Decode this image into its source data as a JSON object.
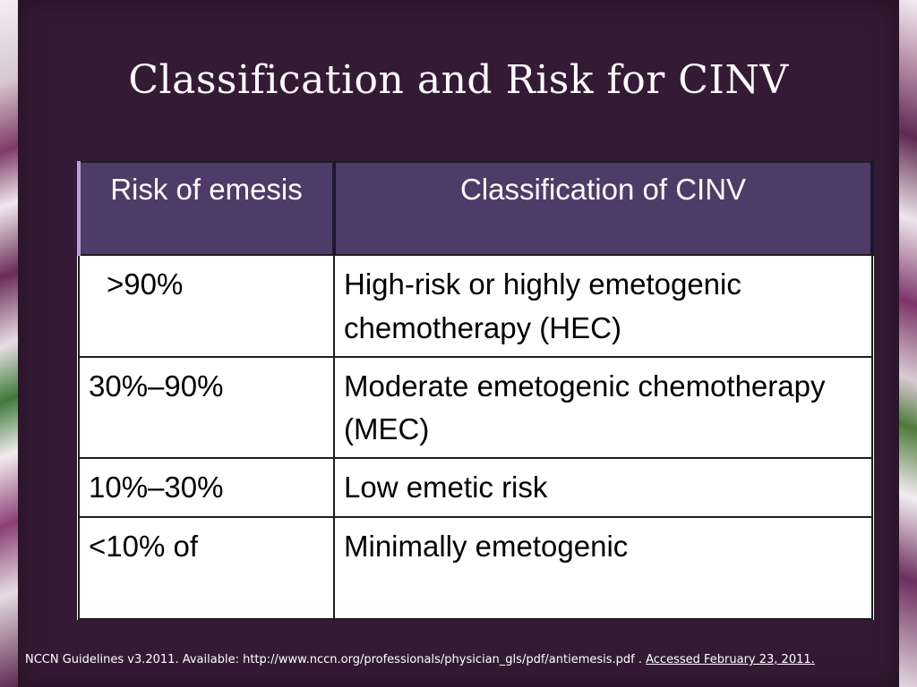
{
  "slide": {
    "title": "Classification and Risk for CINV",
    "table": {
      "headers": [
        "Risk of emesis",
        "Classification of CINV"
      ],
      "rows": [
        {
          "risk": ">90%",
          "classification": "High-risk or highly emetogenic chemotherapy (HEC)"
        },
        {
          "risk": "30%–90%",
          "classification": "Moderate emetogenic chemotherapy (MEC)"
        },
        {
          "risk": "10%–30%",
          "classification": "Low emetic risk"
        },
        {
          "risk": "<10% of",
          "classification": "Minimally emetogenic"
        }
      ]
    },
    "footer": {
      "citation": "NCCN Guidelines v3.2011. Available: http://www.nccn.org/professionals/physician_gls/pdf/antiemesis.pdf . ",
      "accessed": "Accessed February 23, 2011."
    }
  },
  "colors": {
    "background": "#351a35",
    "header_fill": "#4f3b68",
    "text_light": "#ffffff"
  }
}
